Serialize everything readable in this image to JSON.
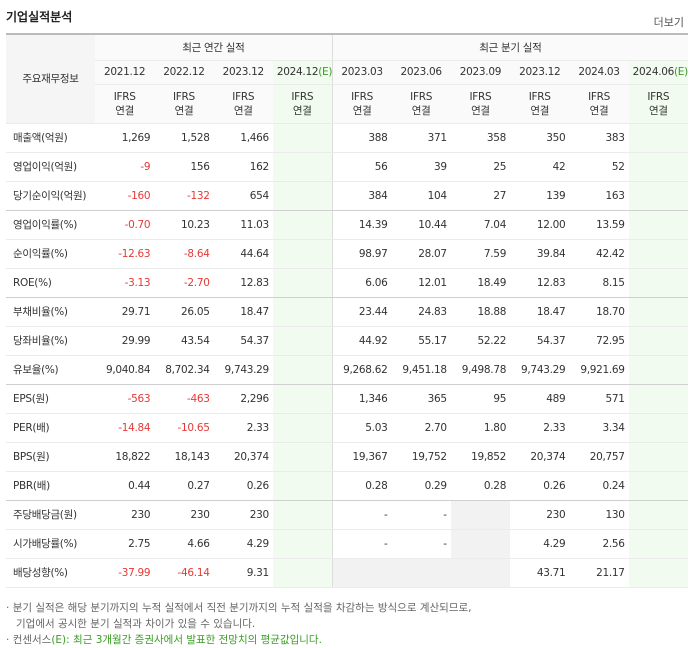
{
  "header": {
    "title": "기업실적분석",
    "more": "더보기"
  },
  "table": {
    "corner": "주요재무정보",
    "groups": {
      "annual": "최근 연간 실적",
      "quarter": "최근 분기 실적"
    },
    "periods": {
      "annual": [
        "2021.12",
        "2022.12",
        "2023.12",
        "2024.12(E)"
      ],
      "quarter": [
        "2023.03",
        "2023.06",
        "2023.09",
        "2023.12",
        "2024.03",
        "2024.06(E)"
      ]
    },
    "accounting": {
      "standard": "IFRS",
      "scope": "연결"
    },
    "rows": [
      {
        "label": "매출액(억원)",
        "annual": [
          "1,269",
          "1,528",
          "1,466",
          null
        ],
        "quarter": [
          "388",
          "371",
          "358",
          "350",
          "383",
          null
        ]
      },
      {
        "label": "영업이익(억원)",
        "annual": [
          "-9",
          "156",
          "162",
          null
        ],
        "quarter": [
          "56",
          "39",
          "25",
          "42",
          "52",
          null
        ]
      },
      {
        "label": "당기순이익(억원)",
        "annual": [
          "-160",
          "-132",
          "654",
          null
        ],
        "quarter": [
          "384",
          "104",
          "27",
          "139",
          "163",
          null
        ]
      },
      {
        "label": "영업이익률(%)",
        "annual": [
          "-0.70",
          "10.23",
          "11.03",
          null
        ],
        "quarter": [
          "14.39",
          "10.44",
          "7.04",
          "12.00",
          "13.59",
          null
        ]
      },
      {
        "label": "순이익률(%)",
        "annual": [
          "-12.63",
          "-8.64",
          "44.64",
          null
        ],
        "quarter": [
          "98.97",
          "28.07",
          "7.59",
          "39.84",
          "42.42",
          null
        ]
      },
      {
        "label": "ROE(%)",
        "annual": [
          "-3.13",
          "-2.70",
          "12.83",
          null
        ],
        "quarter": [
          "6.06",
          "12.01",
          "18.49",
          "12.83",
          "8.15",
          null
        ]
      },
      {
        "label": "부채비율(%)",
        "annual": [
          "29.71",
          "26.05",
          "18.47",
          null
        ],
        "quarter": [
          "23.44",
          "24.83",
          "18.88",
          "18.47",
          "18.70",
          null
        ]
      },
      {
        "label": "당좌비율(%)",
        "annual": [
          "29.99",
          "43.54",
          "54.37",
          null
        ],
        "quarter": [
          "44.92",
          "55.17",
          "52.22",
          "54.37",
          "72.95",
          null
        ]
      },
      {
        "label": "유보율(%)",
        "annual": [
          "9,040.84",
          "8,702.34",
          "9,743.29",
          null
        ],
        "quarter": [
          "9,268.62",
          "9,451.18",
          "9,498.78",
          "9,743.29",
          "9,921.69",
          null
        ]
      },
      {
        "label": "EPS(원)",
        "annual": [
          "-563",
          "-463",
          "2,296",
          null
        ],
        "quarter": [
          "1,346",
          "365",
          "95",
          "489",
          "571",
          null
        ]
      },
      {
        "label": "PER(배)",
        "annual": [
          "-14.84",
          "-10.65",
          "2.33",
          null
        ],
        "quarter": [
          "5.03",
          "2.70",
          "1.80",
          "2.33",
          "3.34",
          null
        ]
      },
      {
        "label": "BPS(원)",
        "annual": [
          "18,822",
          "18,143",
          "20,374",
          null
        ],
        "quarter": [
          "19,367",
          "19,752",
          "19,852",
          "20,374",
          "20,757",
          null
        ]
      },
      {
        "label": "PBR(배)",
        "annual": [
          "0.44",
          "0.27",
          "0.26",
          null
        ],
        "quarter": [
          "0.28",
          "0.29",
          "0.28",
          "0.26",
          "0.24",
          null
        ]
      },
      {
        "label": "주당배당금(원)",
        "annual": [
          "230",
          "230",
          "230",
          null
        ],
        "quarter": [
          "-",
          "-",
          null,
          "230",
          "130",
          null
        ]
      },
      {
        "label": "시가배당률(%)",
        "annual": [
          "2.75",
          "4.66",
          "4.29",
          null
        ],
        "quarter": [
          "-",
          "-",
          null,
          "4.29",
          "2.56",
          null
        ]
      },
      {
        "label": "배당성향(%)",
        "annual": [
          "-37.99",
          "-46.14",
          "9.31",
          null
        ],
        "quarter": [
          null,
          null,
          null,
          "43.71",
          "21.17",
          null
        ]
      }
    ]
  },
  "notes": [
    "분기 실적은 해당 분기까지의 누적 실적에서 직전 분기까지의 누적 실적을 차감하는 방식으로 계산되므로,",
    "기업에서 공시한 분기 실적과 차이가 있을 수 있습니다.",
    "컨센서스(E): 최근 3개월간 증권사에서 발표한 전망치의 평균값입니다."
  ]
}
